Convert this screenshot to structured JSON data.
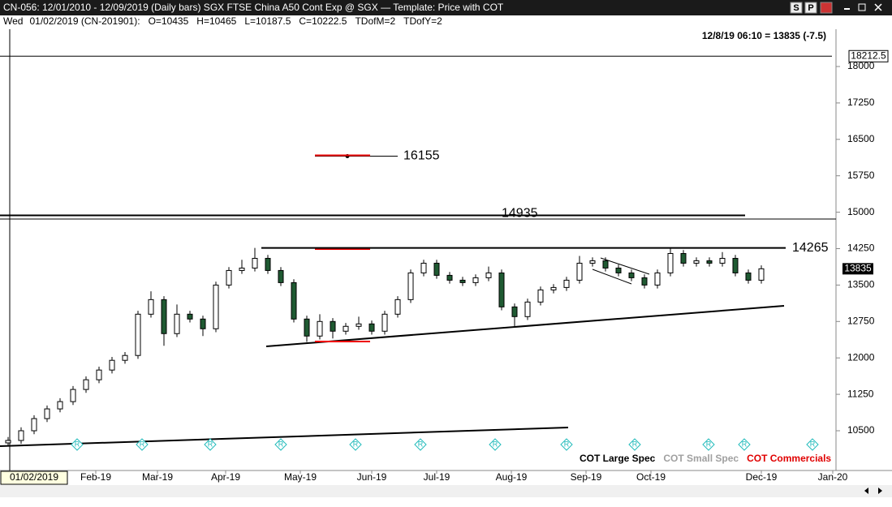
{
  "header": {
    "title": "CN-056:  12/01/2010 - 12/09/2019  (Daily bars)   SGX FTSE China A50 Cont Exp @ SGX  —  Template: Price with COT",
    "buttons": [
      "S",
      "P"
    ],
    "info": [
      "Wed",
      "01/02/2019 (CN-201901):",
      "O=10435",
      "H=10465",
      "L=10187.5",
      "C=10222.5",
      "TDofM=2",
      "TDofY=2"
    ],
    "quote": "12/8/19 06:10 = 13835 (-7.5)",
    "cursor_date": "01/02/2019"
  },
  "legend": {
    "items": [
      {
        "name": "COT Large Spec",
        "color": "#000000"
      },
      {
        "name": "COT Small Spec",
        "color": "#a0a0a0"
      },
      {
        "name": "COT Commercials",
        "color": "#e00000"
      }
    ]
  },
  "cot_markers": [
    "R",
    "R",
    "R",
    "R",
    "R",
    "R",
    "R",
    "R",
    "R",
    "R",
    "R",
    "R"
  ],
  "chart_data": {
    "type": "candlestick",
    "x": [
      0,
      4,
      8,
      12,
      16,
      20,
      24,
      28,
      32,
      36,
      40,
      44,
      48,
      52,
      56,
      60,
      64,
      68,
      72,
      76,
      80,
      84,
      88,
      92,
      96,
      100,
      104,
      108,
      112,
      116,
      120,
      124,
      128,
      132,
      136,
      140,
      144,
      148,
      152,
      156,
      160,
      164,
      168,
      172,
      176,
      180,
      184,
      188,
      192,
      196,
      200,
      204,
      208,
      212,
      216,
      220,
      224,
      228,
      232
    ],
    "open": [
      10250,
      10300,
      10500,
      10750,
      10950,
      11100,
      11350,
      11550,
      11750,
      11950,
      12050,
      12900,
      13200,
      12500,
      12900,
      12800,
      12600,
      13500,
      13800,
      13850,
      14050,
      13800,
      13550,
      12800,
      12450,
      12750,
      12550,
      12650,
      12700,
      12550,
      12900,
      13200,
      13750,
      13950,
      13700,
      13600,
      13550,
      13650,
      13750,
      13050,
      12850,
      13150,
      13400,
      13450,
      13600,
      13950,
      14000,
      13850,
      13750,
      13650,
      13500,
      13750,
      14150,
      13950,
      14000,
      13950,
      14050,
      13750,
      13600
    ],
    "high": [
      10370,
      10570,
      10820,
      11020,
      11170,
      11420,
      11620,
      11820,
      12020,
      12120,
      12970,
      13370,
      13270,
      13100,
      12970,
      12870,
      13570,
      13870,
      14020,
      14265,
      14120,
      13870,
      13620,
      12870,
      12900,
      12820,
      12720,
      12850,
      12770,
      12970,
      13270,
      13820,
      14020,
      14020,
      13770,
      13670,
      13720,
      13880,
      13820,
      13120,
      13220,
      13470,
      13520,
      13670,
      14100,
      14070,
      14070,
      13920,
      13820,
      13720,
      13820,
      14250,
      14220,
      14070,
      14070,
      14180,
      14120,
      13820,
      13905
    ],
    "low": [
      10180,
      10230,
      10430,
      10680,
      10880,
      11030,
      11280,
      11480,
      11680,
      11880,
      11980,
      12830,
      12250,
      12430,
      12730,
      12450,
      12530,
      13430,
      13730,
      13780,
      13730,
      13480,
      12730,
      12330,
      12380,
      12400,
      12480,
      12580,
      12480,
      12480,
      12830,
      13130,
      13680,
      13630,
      13530,
      13480,
      13480,
      13580,
      12980,
      12630,
      12780,
      13080,
      13330,
      13380,
      13530,
      13880,
      13780,
      13680,
      13580,
      13430,
      13430,
      13680,
      13880,
      13880,
      13880,
      13880,
      13680,
      13530,
      13530
    ],
    "close": [
      10300,
      10500,
      10750,
      10950,
      11100,
      11350,
      11550,
      11750,
      11950,
      12050,
      12900,
      13200,
      12500,
      12900,
      12800,
      12600,
      13500,
      13800,
      13850,
      14050,
      13800,
      13550,
      12800,
      12450,
      12750,
      12550,
      12650,
      12700,
      12550,
      12900,
      13200,
      13750,
      13950,
      13700,
      13600,
      13550,
      13650,
      13750,
      13050,
      12850,
      13150,
      13400,
      13450,
      13600,
      13950,
      14000,
      13850,
      13750,
      13650,
      13500,
      13750,
      14150,
      13950,
      14000,
      13950,
      14050,
      13750,
      13600,
      13835
    ],
    "up_color": "#ffffff",
    "down_color": "#1f5a32",
    "xlim": [
      -2,
      255
    ],
    "xticks": [
      {
        "value": 27,
        "label": "Feb-19"
      },
      {
        "value": 46,
        "label": "Mar-19"
      },
      {
        "value": 67,
        "label": "Apr-19"
      },
      {
        "value": 90,
        "label": "May-19"
      },
      {
        "value": 112,
        "label": "Jun-19"
      },
      {
        "value": 132,
        "label": "Jul-19"
      },
      {
        "value": 155,
        "label": "Aug-19"
      },
      {
        "value": 178,
        "label": "Sep-19"
      },
      {
        "value": 198,
        "label": "Oct-19"
      },
      {
        "value": 232,
        "label": "Dec-19"
      },
      {
        "value": 254,
        "label": "Jan-20"
      }
    ],
    "ylim": [
      9765,
      18735
    ],
    "yticks": [
      18000,
      17250,
      16500,
      15750,
      15000,
      14250,
      13500,
      12750,
      12000,
      11250,
      10500
    ],
    "price_levels": [
      16155,
      14935,
      14265
    ],
    "max_marker": 18212.5,
    "last_price": 13835
  }
}
